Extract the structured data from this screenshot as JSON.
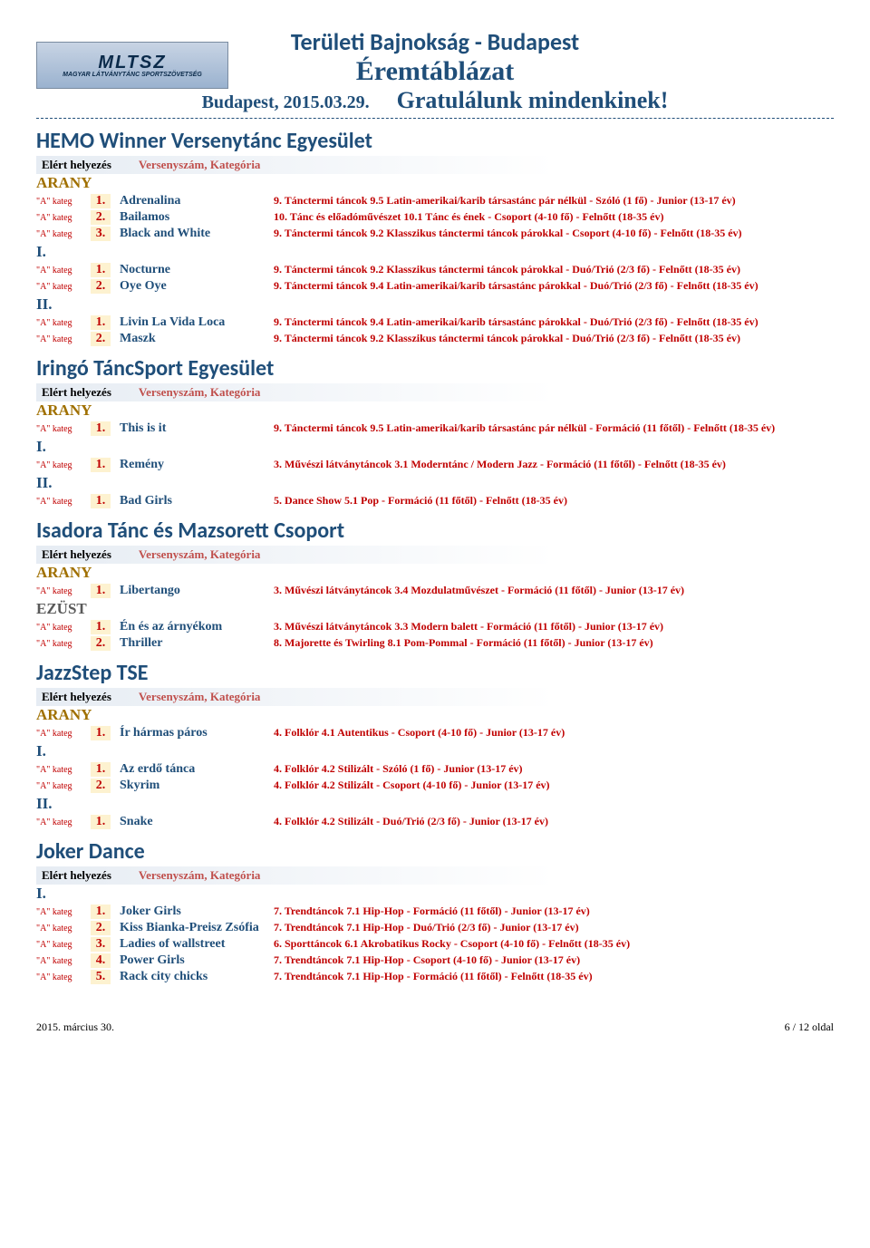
{
  "header": {
    "title": "Területi Bajnokság - Budapest",
    "subtitle1": "Éremtáblázat",
    "date": "Budapest, 2015.03.29.",
    "subtitle2": "Gratulálunk mindenkinek!",
    "logo_top": "MLTSZ",
    "logo_bottom": "MAGYAR LÁTVÁNYTÁNC SPORTSZÖVETSÉG"
  },
  "labels": {
    "elert": "Elért helyezés",
    "versenyszam": "Versenyszám, Kategória",
    "kateg": "\"A\" kateg"
  },
  "medals": {
    "arany": "ARANY",
    "ezust": "EZÜST",
    "i": "I.",
    "ii": "II."
  },
  "clubs": [
    {
      "name": "HEMO Winner Versenytánc Egyesület",
      "groups": [
        {
          "medal": "arany",
          "rows": [
            {
              "num": "1.",
              "name": "Adrenalina",
              "desc": "9. Tánctermi táncok 9.5 Latin-amerikai/karib társastánc pár nélkül - Szóló (1 fő) - Junior (13-17 év)"
            },
            {
              "num": "2.",
              "name": "Bailamos",
              "desc": "10. Tánc és előadóművészet 10.1 Tánc és ének - Csoport (4-10 fő) - Felnőtt (18-35 év)"
            },
            {
              "num": "3.",
              "name": "Black and White",
              "desc": "9. Tánctermi táncok 9.2 Klasszikus tánctermi táncok párokkal - Csoport (4-10 fő) - Felnőtt (18-35 év)"
            }
          ]
        },
        {
          "medal": "i",
          "rows": [
            {
              "num": "1.",
              "name": "Nocturne",
              "desc": "9. Tánctermi táncok 9.2 Klasszikus tánctermi táncok párokkal - Duó/Trió (2/3 fő) - Felnőtt (18-35 év)"
            },
            {
              "num": "2.",
              "name": "Oye Oye",
              "desc": "9. Tánctermi táncok 9.4 Latin-amerikai/karib társastánc párokkal - Duó/Trió (2/3 fő) - Felnőtt (18-35 év)"
            }
          ]
        },
        {
          "medal": "ii",
          "rows": [
            {
              "num": "1.",
              "name": "Livin La Vida Loca",
              "desc": "9. Tánctermi táncok 9.4 Latin-amerikai/karib társastánc párokkal - Duó/Trió (2/3 fő) - Felnőtt (18-35 év)"
            },
            {
              "num": "2.",
              "name": "Maszk",
              "desc": "9. Tánctermi táncok 9.2 Klasszikus tánctermi táncok párokkal - Duó/Trió (2/3 fő) - Felnőtt (18-35 év)"
            }
          ]
        }
      ]
    },
    {
      "name": "Iringó TáncSport Egyesület",
      "groups": [
        {
          "medal": "arany",
          "rows": [
            {
              "num": "1.",
              "name": "This is it",
              "desc": "9. Tánctermi táncok 9.5 Latin-amerikai/karib társastánc pár nélkül - Formáció (11 főtől) - Felnőtt (18-35 év)"
            }
          ]
        },
        {
          "medal": "i",
          "rows": [
            {
              "num": "1.",
              "name": "Remény",
              "desc": "3. Művészi látványtáncok 3.1 Moderntánc / Modern Jazz - Formáció (11 főtől) - Felnőtt (18-35 év)"
            }
          ]
        },
        {
          "medal": "ii",
          "rows": [
            {
              "num": "1.",
              "name": "Bad Girls",
              "desc": "5. Dance Show 5.1 Pop - Formáció (11 főtől) - Felnőtt (18-35 év)"
            }
          ]
        }
      ]
    },
    {
      "name": "Isadora Tánc és Mazsorett Csoport",
      "groups": [
        {
          "medal": "arany",
          "rows": [
            {
              "num": "1.",
              "name": "Libertango",
              "desc": "3. Művészi látványtáncok 3.4 Mozdulatművészet - Formáció (11 főtől) - Junior (13-17 év)"
            }
          ]
        },
        {
          "medal": "ezust",
          "rows": [
            {
              "num": "1.",
              "name": "Én és az árnyékom",
              "desc": "3. Művészi látványtáncok 3.3 Modern balett - Formáció (11 főtől) - Junior (13-17 év)"
            },
            {
              "num": "2.",
              "name": "Thriller",
              "desc": "8. Majorette és Twirling 8.1 Pom-Pommal - Formáció (11 főtől) - Junior (13-17 év)"
            }
          ]
        }
      ]
    },
    {
      "name": "JazzStep TSE",
      "groups": [
        {
          "medal": "arany",
          "rows": [
            {
              "num": "1.",
              "name": "Ír hármas páros",
              "desc": "4. Folklór 4.1 Autentikus - Csoport (4-10 fő) - Junior (13-17 év)"
            }
          ]
        },
        {
          "medal": "i",
          "rows": [
            {
              "num": "1.",
              "name": "Az erdő tánca",
              "desc": "4. Folklór 4.2 Stilizált - Szóló (1 fő) - Junior (13-17 év)"
            },
            {
              "num": "2.",
              "name": "Skyrim",
              "desc": "4. Folklór 4.2 Stilizált - Csoport (4-10 fő) - Junior (13-17 év)"
            }
          ]
        },
        {
          "medal": "ii",
          "rows": [
            {
              "num": "1.",
              "name": "Snake",
              "desc": "4. Folklór 4.2 Stilizált - Duó/Trió (2/3 fő) - Junior (13-17 év)"
            }
          ]
        }
      ]
    },
    {
      "name": "Joker Dance",
      "groups": [
        {
          "medal": "i",
          "rows": [
            {
              "num": "1.",
              "name": "Joker Girls",
              "desc": "7. Trendtáncok 7.1 Hip-Hop - Formáció (11 főtől) - Junior (13-17 év)"
            },
            {
              "num": "2.",
              "name": "Kiss Bianka-Preisz Zsófia",
              "desc": "7. Trendtáncok 7.1 Hip-Hop - Duó/Trió (2/3 fő) - Junior (13-17 év)"
            },
            {
              "num": "3.",
              "name": "Ladies of wallstreet",
              "desc": "6. Sporttáncok 6.1 Akrobatikus Rocky - Csoport (4-10 fő) - Felnőtt (18-35 év)"
            },
            {
              "num": "4.",
              "name": "Power Girls",
              "desc": "7. Trendtáncok 7.1 Hip-Hop - Csoport (4-10 fő) - Junior (13-17 év)"
            },
            {
              "num": "5.",
              "name": "Rack city chicks",
              "desc": "7. Trendtáncok 7.1 Hip-Hop - Formáció (11 főtől) - Felnőtt (18-35 év)"
            }
          ]
        }
      ]
    }
  ],
  "footer": {
    "left": "2015. március 30.",
    "right": "6 / 12 oldal"
  },
  "colors": {
    "primary": "#1f4e79",
    "accent": "#c00000",
    "accent2": "#c0504d",
    "gold": "#a07000",
    "silver": "#595959",
    "numbg": "#fdf2d0"
  }
}
